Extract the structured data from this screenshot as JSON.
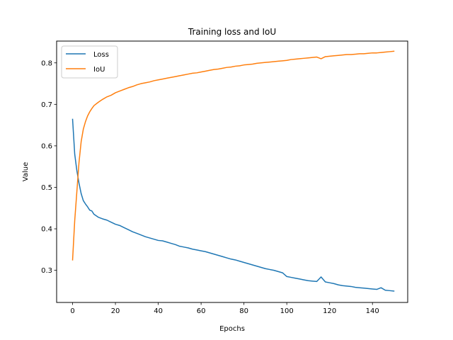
{
  "chart_data": {
    "type": "line",
    "title": "Training loss and IoU",
    "xlabel": "Epochs",
    "ylabel": "Value",
    "xlim": [
      -7.45,
      156.45
    ],
    "ylim": [
      0.2225,
      0.8525
    ],
    "xticks": [
      0,
      20,
      40,
      60,
      80,
      100,
      120,
      140
    ],
    "yticks": [
      0.3,
      0.4,
      0.5,
      0.6,
      0.7,
      0.8
    ],
    "ytick_labels": [
      "0.3",
      "0.4",
      "0.5",
      "0.6",
      "0.7",
      "0.8"
    ],
    "grid": false,
    "legend_position": "top-left",
    "series": [
      {
        "name": "Loss",
        "color": "#1f77b4",
        "x": [
          0,
          1,
          2,
          3,
          4,
          5,
          6,
          7,
          8,
          9,
          10,
          12,
          14,
          16,
          18,
          20,
          22,
          24,
          26,
          28,
          30,
          32,
          34,
          36,
          38,
          40,
          42,
          44,
          46,
          48,
          50,
          52,
          54,
          56,
          58,
          60,
          62,
          64,
          66,
          68,
          70,
          72,
          74,
          76,
          78,
          80,
          82,
          84,
          86,
          88,
          90,
          92,
          94,
          96,
          98,
          100,
          102,
          104,
          106,
          108,
          110,
          112,
          114,
          116,
          118,
          120,
          122,
          124,
          126,
          128,
          130,
          132,
          134,
          136,
          138,
          140,
          142,
          144,
          146,
          148,
          150
        ],
        "values": [
          0.664,
          0.58,
          0.54,
          0.51,
          0.485,
          0.468,
          0.46,
          0.453,
          0.445,
          0.443,
          0.435,
          0.428,
          0.424,
          0.421,
          0.416,
          0.411,
          0.408,
          0.403,
          0.398,
          0.393,
          0.389,
          0.385,
          0.381,
          0.378,
          0.375,
          0.372,
          0.371,
          0.368,
          0.365,
          0.362,
          0.358,
          0.356,
          0.354,
          0.351,
          0.349,
          0.347,
          0.345,
          0.342,
          0.339,
          0.336,
          0.333,
          0.33,
          0.327,
          0.325,
          0.322,
          0.319,
          0.316,
          0.313,
          0.31,
          0.307,
          0.304,
          0.302,
          0.3,
          0.297,
          0.294,
          0.285,
          0.283,
          0.281,
          0.279,
          0.277,
          0.275,
          0.274,
          0.273,
          0.284,
          0.272,
          0.27,
          0.268,
          0.265,
          0.263,
          0.262,
          0.261,
          0.259,
          0.258,
          0.257,
          0.256,
          0.255,
          0.254,
          0.258,
          0.252,
          0.251,
          0.25
        ]
      },
      {
        "name": "IoU",
        "color": "#ff7f0e",
        "x": [
          0,
          1,
          2,
          3,
          4,
          5,
          6,
          7,
          8,
          9,
          10,
          12,
          14,
          16,
          18,
          20,
          22,
          24,
          26,
          28,
          30,
          32,
          34,
          36,
          38,
          40,
          42,
          44,
          46,
          48,
          50,
          52,
          54,
          56,
          58,
          60,
          62,
          64,
          66,
          68,
          70,
          72,
          74,
          76,
          78,
          80,
          82,
          84,
          86,
          88,
          90,
          92,
          94,
          96,
          98,
          100,
          102,
          104,
          106,
          108,
          110,
          112,
          114,
          116,
          118,
          120,
          122,
          124,
          126,
          128,
          130,
          132,
          134,
          136,
          138,
          140,
          142,
          144,
          146,
          148,
          150
        ],
        "values": [
          0.325,
          0.42,
          0.49,
          0.56,
          0.61,
          0.64,
          0.658,
          0.672,
          0.682,
          0.69,
          0.697,
          0.705,
          0.712,
          0.718,
          0.722,
          0.728,
          0.732,
          0.736,
          0.74,
          0.743,
          0.747,
          0.75,
          0.752,
          0.754,
          0.757,
          0.759,
          0.761,
          0.763,
          0.765,
          0.767,
          0.769,
          0.771,
          0.773,
          0.775,
          0.776,
          0.778,
          0.78,
          0.782,
          0.784,
          0.785,
          0.787,
          0.789,
          0.79,
          0.792,
          0.793,
          0.795,
          0.796,
          0.797,
          0.799,
          0.8,
          0.801,
          0.802,
          0.803,
          0.804,
          0.805,
          0.806,
          0.808,
          0.809,
          0.81,
          0.811,
          0.812,
          0.813,
          0.814,
          0.81,
          0.815,
          0.816,
          0.817,
          0.818,
          0.819,
          0.82,
          0.82,
          0.821,
          0.822,
          0.822,
          0.823,
          0.824,
          0.824,
          0.825,
          0.826,
          0.827,
          0.828
        ]
      }
    ]
  }
}
